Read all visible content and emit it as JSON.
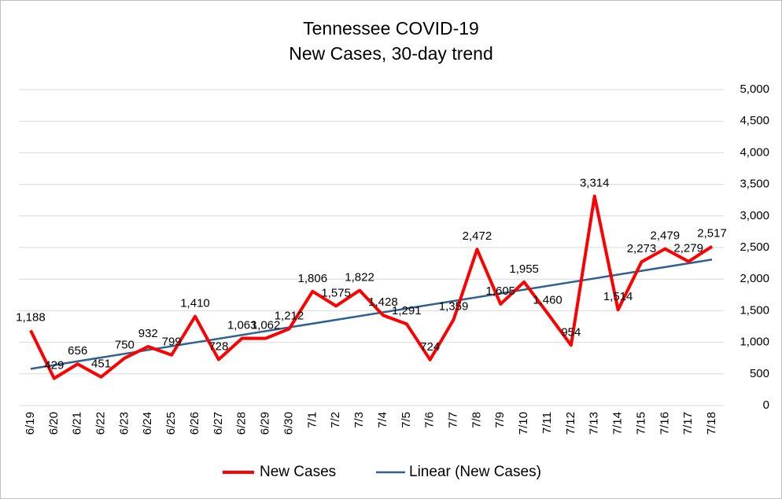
{
  "chart_data": {
    "type": "line",
    "title": "Tennessee COVID-19",
    "subtitle": "New Cases, 30-day trend",
    "categories": [
      "6/19",
      "6/20",
      "6/21",
      "6/22",
      "6/23",
      "6/24",
      "6/25",
      "6/26",
      "6/27",
      "6/28",
      "6/29",
      "6/30",
      "7/1",
      "7/2",
      "7/3",
      "7/4",
      "7/5",
      "7/6",
      "7/7",
      "7/8",
      "7/9",
      "7/10",
      "7/11",
      "7/12",
      "7/13",
      "7/14",
      "7/15",
      "7/16",
      "7/17",
      "7/18"
    ],
    "series": [
      {
        "name": "New Cases",
        "color": "#ff0000",
        "values": [
          1188,
          429,
          656,
          451,
          750,
          932,
          799,
          1410,
          728,
          1063,
          1062,
          1212,
          1806,
          1575,
          1822,
          1428,
          1291,
          724,
          1359,
          2472,
          1605,
          1955,
          1460,
          954,
          3314,
          1514,
          2273,
          2479,
          2279,
          2517
        ],
        "value_labels": [
          "1,188",
          "429",
          "656",
          "451",
          "750",
          "932",
          "799",
          "1,410",
          "728",
          "1,063",
          "1,062",
          "1,212",
          "1,806",
          "1,575",
          "1,822",
          "1,428",
          "1,291",
          "724",
          "1,359",
          "2,472",
          "1,605",
          "1,955",
          "1,460",
          "954",
          "3,314",
          "1,514",
          "2,273",
          "2,479",
          "2,279",
          "2,517"
        ]
      }
    ],
    "trendline": {
      "name": "Linear (New Cases)",
      "color": "#2e6092",
      "values": [
        580,
        2310
      ]
    },
    "ylim": [
      0,
      5000
    ],
    "yticks": [
      0,
      500,
      {
        "value": 1000,
        "label": "1,000"
      },
      {
        "value": 1500,
        "label": "1,500"
      },
      {
        "value": 2000,
        "label": "2,000"
      },
      {
        "value": 2500,
        "label": "2,500"
      },
      {
        "value": 3000,
        "label": "3,000"
      },
      {
        "value": 3500,
        "label": "3,500"
      },
      {
        "value": 4000,
        "label": "4,000"
      },
      {
        "value": 4500,
        "label": "4,500"
      },
      {
        "value": 5000,
        "label": "5,000"
      }
    ],
    "grid": true,
    "legend": "bottom"
  }
}
